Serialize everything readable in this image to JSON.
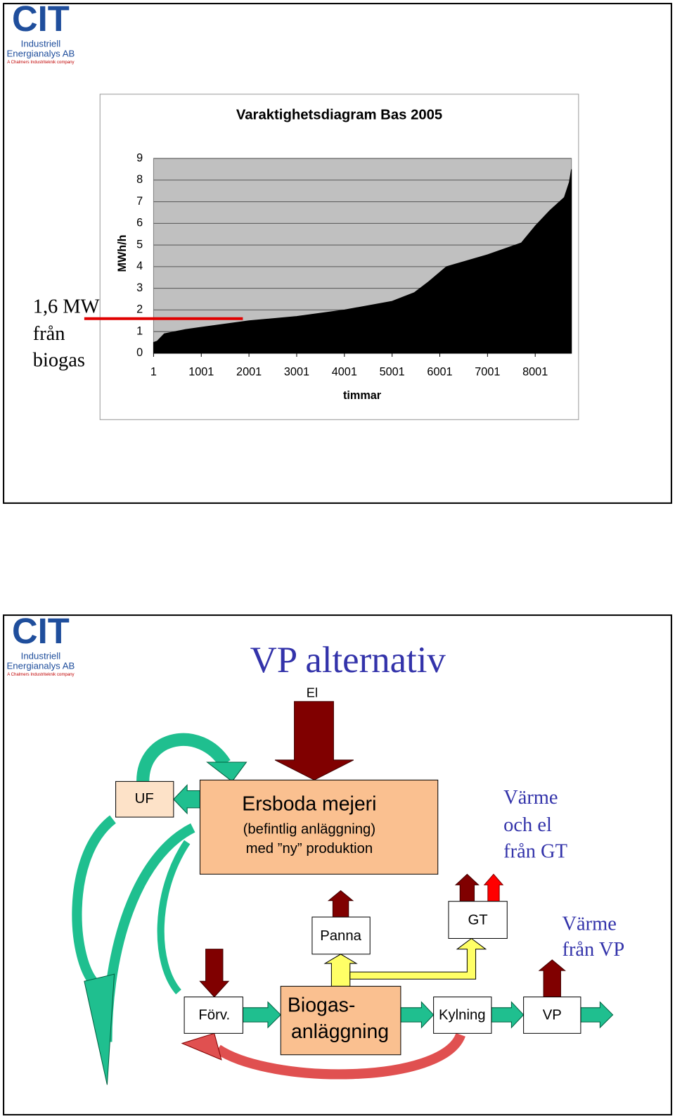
{
  "logo": {
    "mark": "CIT",
    "line1": "Industriell",
    "line2": "Energianalys AB",
    "tagline": "A Chalmers Industriteknik company"
  },
  "chart_data": {
    "type": "area",
    "title": "Varaktighetsdiagram Bas 2005",
    "y_label": "MWh/h",
    "x_label": "timmar",
    "x": [
      1,
      76,
      226,
      675,
      1001,
      2001,
      3001,
      4001,
      5001,
      5465,
      5765,
      6140,
      7001,
      7710,
      8010,
      8310,
      8610,
      8715,
      8760
    ],
    "values": [
      0.5,
      0.56,
      0.9,
      1.1,
      1.2,
      1.5,
      1.7,
      2.0,
      2.4,
      2.8,
      3.3,
      4.0,
      4.55,
      5.1,
      5.9,
      6.6,
      7.2,
      7.9,
      8.5
    ],
    "color": "#000000",
    "background": "#c0c0c0",
    "xlim": [
      1,
      8760
    ],
    "xticks": [
      1,
      1001,
      2001,
      3001,
      4001,
      5001,
      6001,
      7001,
      8001
    ],
    "ylim": [
      0,
      9
    ],
    "yticks": [
      0,
      1,
      2,
      3,
      4,
      5,
      6,
      7,
      8,
      9
    ],
    "grid": true
  },
  "chart_annotation": {
    "lines": [
      "1,6 MW",
      "från",
      "biogas"
    ],
    "value": 1.6,
    "color": "#e00000"
  },
  "diagram": {
    "title": "VP alternativ",
    "el": "El",
    "uf": "UF",
    "mejeri": [
      "Ersboda mejeri",
      "(befintlig anläggning)",
      "med ”ny” produktion"
    ],
    "gt_heat": [
      "Värme",
      "och el",
      "från GT"
    ],
    "panna": "Panna",
    "gt": "GT",
    "vp_heat": [
      "Värme",
      "från VP"
    ],
    "forv": "Förv.",
    "biogas": [
      "Biogas-",
      "anläggning"
    ],
    "kylning": "Kylning",
    "vp": "VP"
  }
}
